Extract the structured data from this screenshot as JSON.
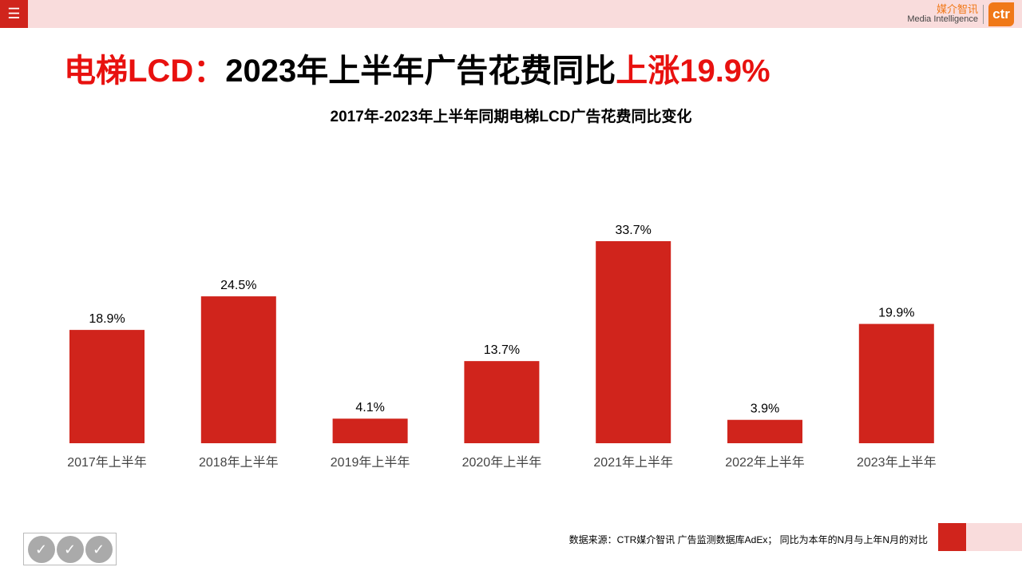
{
  "header": {
    "menu_icon": "hamburger-icon",
    "logo_cn": "媒介智讯",
    "logo_en": "Media Intelligence",
    "logo_mark": "ctr"
  },
  "title": {
    "part1": "电梯LCD：",
    "part2": "2023年上半年广告花费同比",
    "part3": "上涨19.9%"
  },
  "colors": {
    "accent": "#d0241c",
    "title_red": "#e8110f",
    "band": "#f9dcdc"
  },
  "chart_data": {
    "type": "bar",
    "title": "2017年-2023年上半年同期电梯LCD广告花费同比变化",
    "categories": [
      "2017年上半年",
      "2018年上半年",
      "2019年上半年",
      "2020年上半年",
      "2021年上半年",
      "2022年上半年",
      "2023年上半年"
    ],
    "values": [
      18.9,
      24.5,
      4.1,
      13.7,
      33.7,
      3.9,
      19.9
    ],
    "labels": [
      "18.9%",
      "24.5%",
      "4.1%",
      "13.7%",
      "33.7%",
      "3.9%",
      "19.9%"
    ],
    "unit": "%",
    "bar_color": "#d0241c",
    "ylim": [
      0,
      40
    ],
    "grid": false
  },
  "footer": {
    "source": "数据来源：CTR媒介智讯 广告监测数据库AdEx；  同比为本年的N月与上年N月的对比"
  }
}
